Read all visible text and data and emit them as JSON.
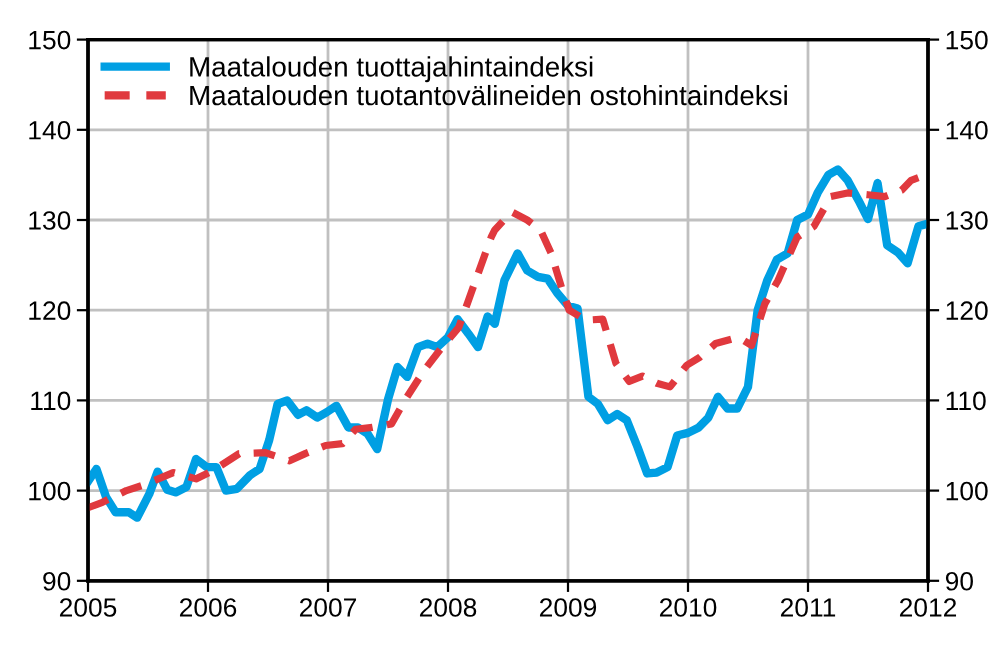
{
  "chart_data": {
    "type": "line",
    "xlim": [
      2005,
      2012
    ],
    "xticks": [
      2005,
      2006,
      2007,
      2008,
      2009,
      2010,
      2011,
      2012
    ],
    "ylim": [
      90,
      150
    ],
    "yticks": [
      90,
      100,
      110,
      120,
      130,
      140,
      150
    ],
    "y2lim": [
      90,
      150
    ],
    "y2ticks": [
      90,
      100,
      110,
      120,
      130,
      140,
      150
    ],
    "grid": true,
    "legend": "top left",
    "series": [
      {
        "name": "Maatalouden tuottajahintaindeksi",
        "color": "#009fe3",
        "line_style": "solid",
        "x": [
          2005.0,
          2005.07,
          2005.15,
          2005.23,
          2005.34,
          2005.41,
          2005.51,
          2005.58,
          2005.66,
          2005.73,
          2005.82,
          2005.9,
          2005.99,
          2006.07,
          2006.15,
          2006.24,
          2006.35,
          2006.43,
          2006.51,
          2006.58,
          2006.66,
          2006.75,
          2006.82,
          2006.91,
          2006.99,
          2007.07,
          2007.17,
          2007.25,
          2007.33,
          2007.41,
          2007.5,
          2007.58,
          2007.66,
          2007.75,
          2007.83,
          2007.91,
          2008.0,
          2008.08,
          2008.17,
          2008.25,
          2008.33,
          2008.39,
          2008.47,
          2008.58,
          2008.66,
          2008.75,
          2008.83,
          2008.91,
          2009.0,
          2009.08,
          2009.17,
          2009.25,
          2009.33,
          2009.41,
          2009.49,
          2009.58,
          2009.66,
          2009.74,
          2009.83,
          2009.91,
          2010.0,
          2010.09,
          2010.17,
          2010.25,
          2010.33,
          2010.41,
          2010.5,
          2010.58,
          2010.66,
          2010.74,
          2010.83,
          2010.91,
          2011.0,
          2011.08,
          2011.17,
          2011.25,
          2011.33,
          2011.42,
          2011.5,
          2011.58,
          2011.66,
          2011.75,
          2011.83,
          2011.92,
          2012.0
        ],
        "values": [
          101,
          102.4,
          99.3,
          97.6,
          97.6,
          97,
          99.6,
          102.1,
          100.1,
          99.8,
          100.4,
          103.5,
          102.6,
          102.6,
          100,
          100.2,
          101.7,
          102.4,
          105.6,
          109.6,
          110,
          108.4,
          108.9,
          108.1,
          108.7,
          109.4,
          107,
          107,
          106.3,
          104.6,
          110.1,
          113.7,
          112.6,
          115.9,
          116.3,
          115.9,
          117,
          119,
          117.4,
          115.9,
          119.3,
          118.5,
          123.3,
          126.3,
          124.4,
          123.7,
          123.5,
          121.9,
          120.5,
          120.2,
          110.4,
          109.6,
          107.8,
          108.5,
          107.8,
          104.8,
          101.9,
          102,
          102.6,
          106.1,
          106.4,
          107,
          108.1,
          110.4,
          109.1,
          109.1,
          111.5,
          120,
          123.3,
          125.6,
          126.3,
          130,
          130.6,
          133,
          135,
          135.6,
          134.4,
          132.2,
          130.1,
          134.1,
          127.2,
          126.4,
          125.2,
          129.3,
          129.6
        ]
      },
      {
        "name": "Maatalouden tuotantovälineiden ostohintaindeksi",
        "color": "#e0393e",
        "line_style": "dashed",
        "x": [
          2005.0,
          2005.12,
          2005.32,
          2005.48,
          2005.71,
          2005.9,
          2006.04,
          2006.26,
          2006.48,
          2006.68,
          2006.81,
          2006.98,
          2007.12,
          2007.23,
          2007.37,
          2007.53,
          2007.64,
          2007.8,
          2007.95,
          2008.09,
          2008.23,
          2008.36,
          2008.39,
          2008.53,
          2008.66,
          2008.77,
          2008.86,
          2008.96,
          2009.01,
          2009.15,
          2009.29,
          2009.4,
          2009.51,
          2009.62,
          2009.74,
          2009.85,
          2009.99,
          2010.1,
          2010.23,
          2010.42,
          2010.53,
          2010.64,
          2010.75,
          2010.91,
          2011.05,
          2011.19,
          2011.33,
          2011.5,
          2011.64,
          2011.78,
          2011.86,
          2011.94
        ],
        "values": [
          98.1,
          98.7,
          100,
          100.7,
          102,
          101.3,
          102.2,
          104.1,
          104.2,
          103.3,
          104.1,
          105,
          105.2,
          106.8,
          107,
          107.4,
          110,
          113.3,
          115.9,
          118.1,
          123.3,
          128.1,
          128.9,
          130.9,
          130,
          128.9,
          126.3,
          121.9,
          120,
          118.9,
          119,
          114.1,
          112.1,
          112.7,
          111.9,
          111.5,
          113.9,
          114.8,
          116.3,
          117,
          116.1,
          120.7,
          123.3,
          128.1,
          129.3,
          132.6,
          133,
          132.8,
          132.6,
          133.3,
          134.4,
          134.8
        ]
      }
    ]
  }
}
